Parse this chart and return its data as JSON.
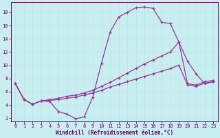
{
  "xlabel": "Windchill (Refroidissement éolien,°C)",
  "bg_color": "#c8eef0",
  "line_color": "#993399",
  "grid_color": "#b8e4e8",
  "xlim": [
    -0.5,
    23.5
  ],
  "ylim": [
    1.5,
    19.5
  ],
  "xticks": [
    0,
    1,
    2,
    3,
    4,
    5,
    6,
    7,
    8,
    9,
    10,
    11,
    12,
    13,
    14,
    15,
    16,
    17,
    18,
    19,
    20,
    21,
    22,
    23
  ],
  "yticks": [
    2,
    4,
    6,
    8,
    10,
    12,
    14,
    16,
    18
  ],
  "line1_x": [
    0,
    1,
    2,
    3,
    4,
    5,
    6,
    7,
    8,
    9,
    10,
    11,
    12,
    13,
    14,
    15,
    16,
    17,
    18,
    19,
    20,
    21,
    22,
    23
  ],
  "line1_y": [
    7.2,
    4.8,
    4.1,
    4.6,
    4.5,
    3.0,
    2.6,
    1.9,
    2.2,
    5.2,
    10.3,
    15.0,
    17.3,
    18.0,
    18.7,
    18.8,
    18.6,
    16.5,
    16.3,
    13.5,
    10.6,
    8.7,
    7.2,
    7.5
  ],
  "line2_x": [
    0,
    1,
    2,
    3,
    4,
    5,
    6,
    7,
    8,
    9,
    10,
    11,
    12,
    13,
    14,
    15,
    16,
    17,
    18,
    19,
    20,
    21,
    22,
    23
  ],
  "line2_y": [
    7.2,
    4.8,
    4.1,
    4.6,
    4.8,
    5.0,
    5.3,
    5.5,
    5.8,
    6.2,
    6.8,
    7.4,
    8.1,
    8.8,
    9.5,
    10.2,
    10.8,
    11.4,
    12.0,
    13.5,
    7.2,
    7.0,
    7.5,
    7.7
  ],
  "line3_x": [
    0,
    1,
    2,
    3,
    4,
    5,
    6,
    7,
    8,
    9,
    10,
    11,
    12,
    13,
    14,
    15,
    16,
    17,
    18,
    19,
    20,
    21,
    22,
    23
  ],
  "line3_y": [
    7.2,
    4.8,
    4.1,
    4.6,
    4.7,
    4.8,
    5.0,
    5.2,
    5.5,
    5.8,
    6.2,
    6.7,
    7.1,
    7.5,
    7.9,
    8.3,
    8.7,
    9.1,
    9.5,
    10.0,
    7.0,
    6.8,
    7.3,
    7.5
  ]
}
